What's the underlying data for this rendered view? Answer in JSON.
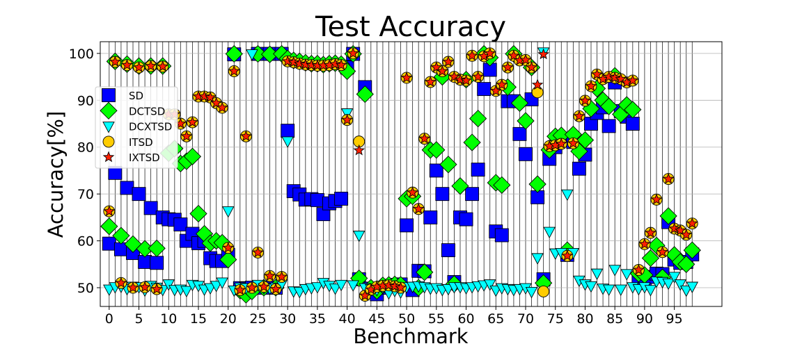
{
  "chart_data": {
    "type": "scatter",
    "title": "Test Accuracy",
    "xlabel": "Benchmark",
    "ylabel": "Accuracy[%]",
    "xlim": [
      -1.5,
      103
    ],
    "ylim": [
      46,
      102.5
    ],
    "xticks": [
      0,
      5,
      10,
      15,
      20,
      25,
      30,
      35,
      40,
      45,
      50,
      55,
      60,
      65,
      70,
      75,
      80,
      85,
      90,
      95
    ],
    "yticks": [
      50,
      60,
      70,
      80,
      90,
      100
    ],
    "grid": true,
    "vertical_lines_at_each_benchmark": true,
    "legend_position": "upper-left",
    "series": [
      {
        "name": "SD",
        "marker": "square",
        "color": "#0000ff",
        "values": [
          59.4,
          74.5,
          58.2,
          71.3,
          57.4,
          70.0,
          55.5,
          67.0,
          55.3,
          65.0,
          64.6,
          64.5,
          63.5,
          60.0,
          61.5,
          59.5,
          60.0,
          56.3,
          55.7,
          55.7,
          57.0,
          99.8,
          49.9,
          49.8,
          50.0,
          99.9,
          50.0,
          99.9,
          50.0,
          99.9,
          83.5,
          70.6,
          69.9,
          68.8,
          68.9,
          68.7,
          65.7,
          68.0,
          68.5,
          69.0,
          97.0,
          99.9,
          51.8,
          92.8,
          49.8,
          48.6,
          50.0,
          50.4,
          50.6,
          50.7,
          63.3,
          49.5,
          53.6,
          53.5,
          65.0,
          75.0,
          70.0,
          58.0,
          51.2,
          65.0,
          64.6,
          70.0,
          75.2,
          92.4,
          96.5,
          62.0,
          61.2,
          89.8,
          89.8,
          82.8,
          78.5,
          90.2,
          69.3,
          51.8,
          77.5,
          80.0,
          81.7,
          57.0,
          81.1,
          75.4,
          78.4,
          85.0,
          87.3,
          88.5,
          84.5,
          93.8,
          87.7,
          86.5,
          85.0,
          51.6,
          51.0,
          52.3,
          53.0,
          52.9,
          64.0,
          56.0,
          55.3,
          55.5,
          57.1
        ]
      },
      {
        "name": "DCTSD",
        "marker": "diamond",
        "color": "#00ff00",
        "values": [
          63.1,
          98.3,
          61.1,
          97.7,
          59.3,
          97.3,
          58.3,
          97.3,
          58.4,
          97.3,
          78.7,
          79.7,
          76.5,
          77.0,
          78.0,
          65.8,
          61.5,
          59.5,
          60.0,
          59.6,
          56.0,
          99.9,
          49.4,
          48.5,
          49.2,
          99.9,
          50.0,
          99.8,
          50.0,
          99.9,
          98.9,
          98.5,
          98.3,
          98.0,
          97.8,
          97.8,
          97.6,
          97.8,
          97.9,
          97.7,
          96.2,
          99.9,
          52.0,
          91.3,
          50.0,
          49.3,
          50.5,
          50.6,
          50.7,
          50.6,
          69.0,
          69.5,
          50.0,
          53.3,
          79.4,
          79.4,
          95.0,
          76.3,
          50.8,
          71.7,
          94.4,
          81.0,
          86.1,
          99.9,
          99.1,
          72.4,
          71.9,
          92.8,
          99.9,
          89.4,
          85.6,
          97.0,
          72.1,
          51.0,
          79.4,
          82.3,
          82.5,
          58.0,
          82.7,
          79.1,
          81.5,
          88.2,
          92.5,
          90.0,
          88.7,
          95.2,
          87.0,
          89.0,
          88.0,
          53.0,
          52.7,
          56.3,
          59.0,
          52.2,
          65.3,
          57.0,
          55.5,
          55.0,
          58.0
        ]
      },
      {
        "name": "DCXTSD",
        "marker": "triangle-down",
        "color": "#00ffff",
        "values": [
          49.7,
          50.2,
          50.3,
          49.8,
          50.3,
          50.2,
          49.5,
          50.5,
          50.1,
          49.6,
          50.8,
          49.6,
          49.7,
          49.4,
          50.7,
          50.5,
          49.7,
          50.0,
          50.5,
          51.2,
          66.4,
          49.5,
          50.1,
          50.0,
          99.9,
          50.7,
          50.0,
          49.9,
          50.1,
          50.8,
          81.3,
          49.3,
          49.2,
          49.8,
          50.0,
          50.2,
          51.1,
          50.5,
          49.9,
          50.7,
          87.3,
          50.6,
          61.2,
          50.0,
          49.8,
          49.6,
          50.1,
          48.9,
          49.4,
          49.1,
          50.2,
          50.3,
          50.4,
          50.2,
          49.9,
          50.0,
          49.6,
          49.8,
          50.2,
          50.2,
          50.0,
          50.2,
          50.4,
          50.6,
          50.8,
          49.5,
          50.0,
          49.8,
          49.6,
          49.8,
          50.0,
          49.2,
          56.4,
          100.3,
          62.0,
          57.4,
          57.5,
          70.0,
          57.5,
          51.6,
          50.8,
          50.4,
          53.1,
          49.9,
          49.7,
          53.9,
          49.7,
          53.0,
          50.2,
          49.8,
          50.2,
          49.6,
          51.4,
          51.3,
          51.0,
          52.4,
          50.8,
          49.5,
          50.3
        ]
      },
      {
        "name": "ITSD",
        "marker": "circle",
        "color": "#ffcc00",
        "values": [
          66.3,
          98.2,
          51.0,
          97.5,
          50.0,
          97.0,
          50.1,
          97.3,
          49.7,
          97.2,
          87.0,
          87.0,
          85.0,
          82.3,
          85.3,
          90.8,
          90.8,
          90.6,
          89.4,
          88.4,
          58.5,
          96.2,
          49.5,
          82.3,
          50.0,
          57.5,
          50.2,
          52.5,
          49.7,
          52.3,
          98.3,
          98.1,
          97.8,
          97.6,
          97.5,
          97.4,
          97.4,
          97.5,
          97.7,
          97.5,
          85.8,
          100.0,
          81.2,
          48.3,
          49.6,
          50.2,
          50.4,
          50.5,
          50.3,
          50.0,
          94.8,
          70.3,
          66.8,
          81.8,
          93.9,
          97.0,
          96.2,
          98.2,
          95.0,
          94.4,
          94.2,
          99.5,
          95.0,
          99.4,
          100.0,
          92.0,
          93.3,
          97.0,
          99.5,
          98.5,
          98.6,
          97.0,
          91.7,
          49.2,
          80.2,
          80.4,
          80.7,
          56.8,
          80.8,
          86.6,
          89.9,
          93.0,
          95.5,
          94.5,
          95.0,
          94.8,
          94.5,
          93.8,
          94.2,
          53.8,
          59.3,
          61.7,
          68.8,
          57.6,
          73.2,
          62.6,
          62.2,
          61.3,
          63.7
        ]
      },
      {
        "name": "IXTSD",
        "marker": "star",
        "color": "#ff2000",
        "values": [
          66.3,
          98.2,
          51.0,
          97.5,
          50.0,
          97.0,
          50.1,
          97.3,
          49.7,
          97.2,
          87.0,
          87.0,
          85.0,
          82.3,
          85.3,
          90.8,
          90.8,
          90.6,
          89.4,
          88.4,
          58.5,
          96.2,
          49.5,
          82.3,
          50.0,
          57.5,
          50.2,
          52.5,
          49.7,
          52.3,
          98.3,
          98.1,
          97.8,
          97.6,
          97.5,
          97.4,
          97.4,
          97.5,
          97.7,
          97.5,
          85.8,
          100.0,
          79.3,
          48.3,
          49.6,
          50.2,
          50.4,
          50.5,
          50.3,
          50.0,
          94.8,
          70.3,
          66.8,
          81.8,
          93.9,
          97.0,
          96.2,
          98.2,
          95.0,
          94.4,
          94.2,
          99.5,
          95.0,
          99.4,
          100.0,
          92.0,
          93.3,
          97.0,
          99.5,
          98.5,
          98.6,
          97.0,
          93.3,
          99.8,
          80.2,
          80.4,
          80.7,
          56.8,
          80.8,
          86.6,
          89.9,
          93.0,
          95.5,
          94.5,
          95.0,
          94.8,
          94.5,
          93.8,
          94.2,
          53.8,
          59.3,
          61.7,
          68.8,
          57.6,
          73.2,
          62.6,
          62.2,
          61.3,
          63.7
        ]
      }
    ]
  }
}
